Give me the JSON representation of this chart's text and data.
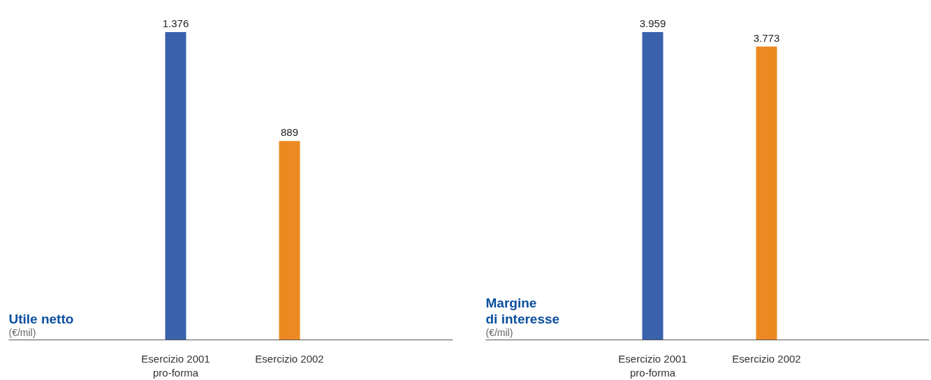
{
  "chart_data": [
    {
      "type": "bar",
      "title": "Utile netto",
      "ylabel": "(€/mil)",
      "categories": [
        "Esercizio 2001\npro-forma",
        "Esercizio 2002"
      ],
      "values": [
        1376,
        889
      ],
      "colors": [
        "#3a62ac",
        "#ec8a22"
      ],
      "value_labels": [
        "1.376",
        "889"
      ]
    },
    {
      "type": "bar",
      "title": "Margine\ndi interesse",
      "ylabel": "(€/mil)",
      "categories": [
        "Esercizio 2001\npro-forma",
        "Esercizio 2002"
      ],
      "values": [
        3959,
        3773
      ],
      "colors": [
        "#3a62ac",
        "#ec8a22"
      ],
      "value_labels": [
        "3.959",
        "3.773"
      ]
    }
  ]
}
